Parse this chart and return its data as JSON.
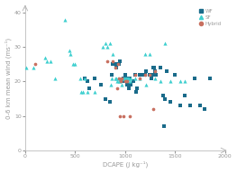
{
  "title": "",
  "xlabel": "DCAPE (J kg⁻¹)",
  "ylabel": "0-6 km mean wind (ms⁻¹)",
  "xlim": [
    0,
    2000
  ],
  "ylim": [
    0,
    42
  ],
  "xticks": [
    0,
    500,
    1000,
    1500,
    2000
  ],
  "yticks": [
    0,
    10,
    20,
    30,
    40
  ],
  "wf_color": "#1a6b8a",
  "sf_color": "#3ecfcf",
  "hybrid_color": "#c87060",
  "wf_data": [
    [
      600,
      21
    ],
    [
      620,
      20
    ],
    [
      640,
      18
    ],
    [
      700,
      21
    ],
    [
      760,
      19
    ],
    [
      800,
      15
    ],
    [
      850,
      14
    ],
    [
      870,
      22
    ],
    [
      880,
      25
    ],
    [
      900,
      25
    ],
    [
      910,
      24
    ],
    [
      920,
      25
    ],
    [
      940,
      25
    ],
    [
      950,
      26
    ],
    [
      960,
      20
    ],
    [
      970,
      20
    ],
    [
      980,
      21
    ],
    [
      990,
      20
    ],
    [
      1000,
      22
    ],
    [
      1010,
      21
    ],
    [
      1020,
      19
    ],
    [
      1030,
      19
    ],
    [
      1040,
      18
    ],
    [
      1050,
      21
    ],
    [
      1060,
      19
    ],
    [
      1080,
      20
    ],
    [
      1100,
      22
    ],
    [
      1110,
      17
    ],
    [
      1120,
      18
    ],
    [
      1150,
      22
    ],
    [
      1180,
      22
    ],
    [
      1200,
      22
    ],
    [
      1210,
      23
    ],
    [
      1250,
      22
    ],
    [
      1260,
      21
    ],
    [
      1270,
      22
    ],
    [
      1280,
      24
    ],
    [
      1290,
      24
    ],
    [
      1300,
      23
    ],
    [
      1310,
      22
    ],
    [
      1350,
      24
    ],
    [
      1380,
      16
    ],
    [
      1390,
      7
    ],
    [
      1400,
      15
    ],
    [
      1420,
      23
    ],
    [
      1450,
      14
    ],
    [
      1500,
      22
    ],
    [
      1550,
      13
    ],
    [
      1600,
      16
    ],
    [
      1650,
      13
    ],
    [
      1700,
      21
    ],
    [
      1750,
      13
    ],
    [
      1800,
      12
    ],
    [
      1850,
      21
    ]
  ],
  "sf_data": [
    [
      10,
      24
    ],
    [
      80,
      24
    ],
    [
      200,
      27
    ],
    [
      220,
      26
    ],
    [
      250,
      26
    ],
    [
      300,
      21
    ],
    [
      400,
      38
    ],
    [
      440,
      29
    ],
    [
      450,
      28
    ],
    [
      480,
      25
    ],
    [
      500,
      25
    ],
    [
      550,
      21
    ],
    [
      560,
      17
    ],
    [
      580,
      17
    ],
    [
      600,
      21
    ],
    [
      620,
      17
    ],
    [
      700,
      17
    ],
    [
      780,
      30
    ],
    [
      800,
      31
    ],
    [
      820,
      30
    ],
    [
      850,
      31
    ],
    [
      860,
      19
    ],
    [
      870,
      21
    ],
    [
      880,
      28
    ],
    [
      900,
      21
    ],
    [
      910,
      21
    ],
    [
      920,
      20
    ],
    [
      930,
      21
    ],
    [
      940,
      20
    ],
    [
      950,
      20
    ],
    [
      960,
      21
    ],
    [
      970,
      19
    ],
    [
      980,
      21
    ],
    [
      990,
      21
    ],
    [
      1000,
      21
    ],
    [
      1010,
      21
    ],
    [
      1020,
      21
    ],
    [
      1030,
      21
    ],
    [
      1040,
      21
    ],
    [
      1050,
      20
    ],
    [
      1060,
      21
    ],
    [
      1100,
      21
    ],
    [
      1150,
      21
    ],
    [
      1200,
      28
    ],
    [
      1210,
      19
    ],
    [
      1250,
      28
    ],
    [
      1300,
      21
    ],
    [
      1350,
      20
    ],
    [
      1400,
      31
    ],
    [
      1450,
      20
    ],
    [
      1550,
      20
    ],
    [
      1600,
      20
    ]
  ],
  "hybrid_data": [
    [
      100,
      25
    ],
    [
      820,
      26
    ],
    [
      880,
      26
    ],
    [
      900,
      24
    ],
    [
      920,
      18
    ],
    [
      930,
      25
    ],
    [
      940,
      21
    ],
    [
      950,
      10
    ],
    [
      960,
      20
    ],
    [
      970,
      21
    ],
    [
      980,
      10
    ],
    [
      1000,
      20
    ],
    [
      1010,
      20
    ],
    [
      1020,
      20
    ],
    [
      1050,
      10
    ],
    [
      1100,
      22
    ],
    [
      1150,
      21
    ],
    [
      1200,
      22
    ],
    [
      1250,
      22
    ],
    [
      1280,
      12
    ],
    [
      1300,
      23
    ]
  ]
}
